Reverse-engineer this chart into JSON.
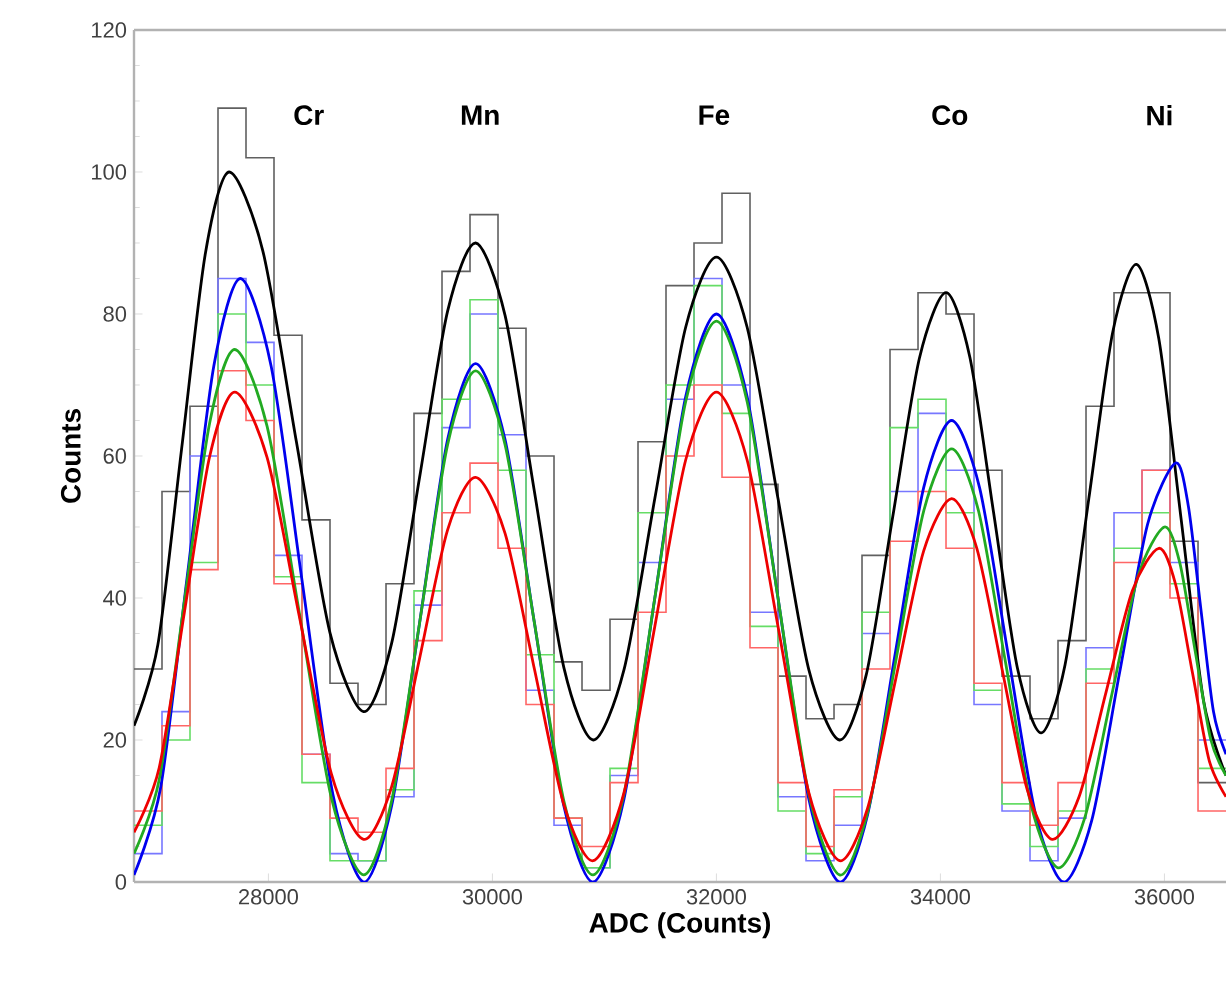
{
  "chart_data": {
    "type": "line",
    "xlabel": "ADC (Counts)",
    "ylabel": "Counts",
    "xlim": [
      26800,
      36550
    ],
    "ylim": [
      0,
      120
    ],
    "xticks": [
      28000,
      30000,
      32000,
      34000,
      36000
    ],
    "yticks": [
      0,
      20,
      40,
      60,
      80,
      100,
      120
    ],
    "grid": false,
    "marker": "none",
    "annotations": [
      "Cr",
      "Mn",
      "Fe",
      "Co",
      "Ni"
    ],
    "bins": [
      26800,
      27050,
      27300,
      27550,
      27800,
      28050,
      28300,
      28550,
      28800,
      29050,
      29300,
      29550,
      29800,
      30050,
      30300,
      30550,
      30800,
      31050,
      31300,
      31550,
      31800,
      32050,
      32300,
      32550,
      32800,
      33050,
      33300,
      33550,
      33800,
      34050,
      34300,
      34550,
      34800,
      35050,
      35300,
      35550,
      35800,
      36050,
      36300,
      36550
    ],
    "series": [
      {
        "type": "histogram",
        "color": "#606060",
        "values": [
          30,
          55,
          67,
          109,
          102,
          77,
          51,
          28,
          25,
          42,
          66,
          86,
          94,
          78,
          60,
          31,
          27,
          37,
          62,
          84,
          90,
          97,
          56,
          29,
          23,
          25,
          46,
          75,
          83,
          80,
          58,
          29,
          23,
          34,
          67,
          83,
          83,
          48,
          14
        ]
      },
      {
        "type": "histogram",
        "color": "#7777ff",
        "values": [
          4,
          24,
          60,
          85,
          76,
          46,
          18,
          4,
          3,
          12,
          39,
          64,
          80,
          63,
          27,
          8,
          2,
          15,
          45,
          68,
          85,
          70,
          38,
          12,
          3,
          8,
          35,
          55,
          66,
          58,
          25,
          10,
          3,
          9,
          33,
          52,
          58,
          45,
          20
        ]
      },
      {
        "type": "histogram",
        "color": "#66dd66",
        "values": [
          8,
          20,
          45,
          80,
          70,
          43,
          14,
          3,
          3,
          13,
          41,
          68,
          82,
          58,
          32,
          9,
          2,
          16,
          52,
          70,
          84,
          66,
          36,
          10,
          4,
          12,
          38,
          64,
          68,
          52,
          27,
          11,
          5,
          10,
          30,
          47,
          52,
          42,
          16
        ]
      },
      {
        "type": "histogram",
        "color": "#ff6666",
        "values": [
          10,
          22,
          44,
          72,
          65,
          42,
          18,
          9,
          7,
          16,
          34,
          52,
          59,
          47,
          25,
          9,
          5,
          14,
          38,
          60,
          70,
          57,
          33,
          14,
          5,
          13,
          30,
          48,
          55,
          47,
          28,
          14,
          8,
          14,
          28,
          45,
          58,
          40,
          10
        ]
      },
      {
        "color": "#000000",
        "x": [
          26800,
          27013,
          27225,
          27438,
          27650,
          27950,
          28250,
          28550,
          28850,
          29100,
          29350,
          29600,
          29850,
          30113,
          30375,
          30638,
          30900,
          31175,
          31450,
          31725,
          32000,
          32275,
          32550,
          32825,
          33100,
          33338,
          33575,
          33813,
          34050,
          34263,
          34475,
          34688,
          34900,
          35113,
          35325,
          35538,
          35750,
          35950,
          36150,
          36350,
          36550
        ],
        "values": [
          22,
          33.4,
          61,
          88.6,
          100,
          88.9,
          62,
          35.1,
          24,
          33.6,
          57,
          80.4,
          90,
          79.8,
          55,
          30.2,
          20,
          29.9,
          54,
          78.1,
          88,
          78.1,
          54,
          29.9,
          20,
          29.2,
          51.5,
          73.8,
          83,
          73.9,
          52,
          30.1,
          21,
          30.6,
          54,
          77.4,
          87,
          76.5,
          51,
          25.5,
          15
        ]
      },
      {
        "color": "#0000ee",
        "x": [
          26800,
          27038,
          27275,
          27513,
          27750,
          28025,
          28300,
          28575,
          28850,
          29100,
          29350,
          29600,
          29850,
          30113,
          30375,
          30638,
          30900,
          31175,
          31450,
          31725,
          32000,
          32275,
          32550,
          32825,
          33100,
          33350,
          33600,
          33850,
          34100,
          34350,
          34600,
          34850,
          35100,
          35350,
          35600,
          35850,
          36100,
          36213,
          36325,
          36438,
          36550
        ],
        "values": [
          1,
          13.3,
          43,
          72.7,
          85,
          72.6,
          42.5,
          12.4,
          0,
          10.7,
          36.5,
          62.3,
          73,
          62.3,
          36.5,
          10.7,
          0,
          11.7,
          40,
          68.3,
          80,
          68.3,
          40,
          11.7,
          0,
          9.5,
          32.5,
          55.5,
          65,
          55.5,
          32.5,
          9.5,
          0,
          8.6,
          29.5,
          50.4,
          59,
          53,
          38.5,
          24,
          18
        ]
      },
      {
        "color": "#22aa22",
        "x": [
          26800,
          27025,
          27250,
          27475,
          27700,
          27988,
          28275,
          28563,
          28850,
          29100,
          29350,
          29600,
          29850,
          30113,
          30375,
          30638,
          30900,
          31175,
          31450,
          31725,
          32000,
          32275,
          32550,
          32825,
          33100,
          33350,
          33600,
          33850,
          34100,
          34338,
          34575,
          34813,
          35050,
          35288,
          35525,
          35763,
          36000,
          36138,
          36275,
          36413,
          36550
        ],
        "values": [
          4,
          14.4,
          39.5,
          64.6,
          75,
          64.2,
          38,
          11.8,
          1,
          11.4,
          36.5,
          61.6,
          72,
          61.6,
          36.5,
          11.4,
          1,
          12.4,
          40,
          67.6,
          79,
          67.6,
          40,
          12.4,
          1,
          9.8,
          31,
          52.2,
          61,
          52.4,
          31.5,
          10.6,
          2,
          9,
          26,
          43,
          50,
          44.9,
          32.5,
          20.1,
          15
        ]
      },
      {
        "color": "#ee0000",
        "x": [
          26800,
          27025,
          27250,
          27475,
          27700,
          27988,
          28275,
          28563,
          28850,
          29100,
          29350,
          29600,
          29850,
          30113,
          30375,
          30638,
          30900,
          31175,
          31450,
          31725,
          32000,
          32275,
          32550,
          32825,
          33100,
          33350,
          33600,
          33850,
          34100,
          34325,
          34550,
          34775,
          35000,
          35238,
          35475,
          35713,
          35950,
          36100,
          36250,
          36400,
          36550
        ],
        "values": [
          7,
          16.1,
          38,
          59.9,
          69,
          59.8,
          37.5,
          15.2,
          6,
          13.4,
          31.5,
          49.6,
          57,
          49.1,
          30,
          10.9,
          3,
          12.6,
          36,
          59.4,
          69,
          59.4,
          36,
          12.6,
          3,
          10.4,
          28.5,
          46.6,
          54,
          47,
          30,
          13,
          6,
          12,
          26.5,
          41,
          47,
          41.9,
          29.5,
          17.1,
          12
        ]
      }
    ]
  }
}
